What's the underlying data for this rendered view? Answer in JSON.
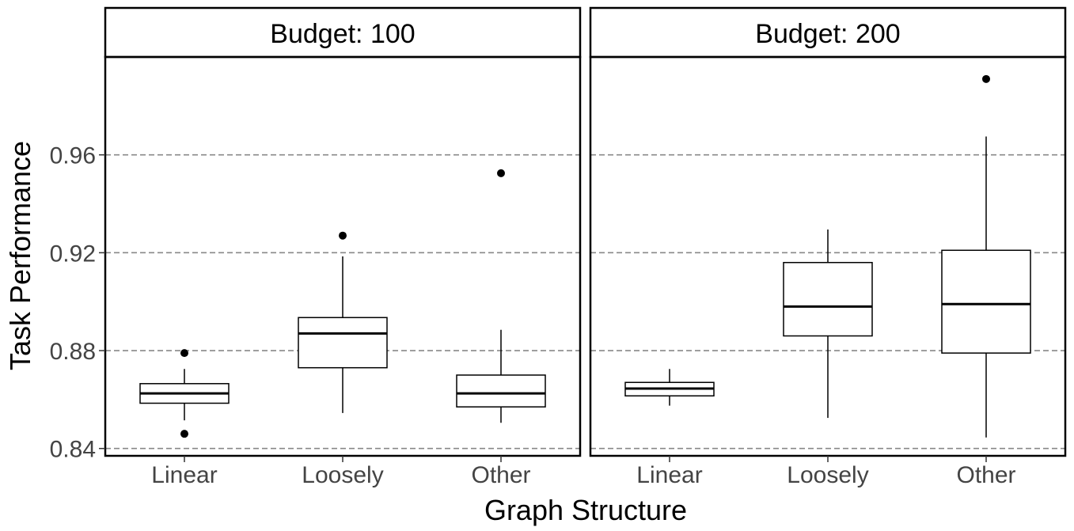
{
  "chart_data": {
    "type": "boxplot",
    "xlabel": "Graph Structure",
    "ylabel": "Task Performance",
    "ylim": [
      0.837,
      1.0
    ],
    "yticks": [
      0.84,
      0.88,
      0.92,
      0.96
    ],
    "ytick_labels": [
      "0.84",
      "0.88",
      "0.92",
      "0.96"
    ],
    "grid": "horizontal dashed at y ticks",
    "categories": [
      "Linear",
      "Loosely",
      "Other"
    ],
    "panels": [
      {
        "title": "Budget: 100",
        "boxes": [
          {
            "category": "Linear",
            "whisker_low": 0.8515,
            "q1": 0.8585,
            "median": 0.8625,
            "q3": 0.8665,
            "whisker_high": 0.8725,
            "outliers": [
              0.879,
              0.846
            ]
          },
          {
            "category": "Loosely",
            "whisker_low": 0.8545,
            "q1": 0.873,
            "median": 0.887,
            "q3": 0.8935,
            "whisker_high": 0.9185,
            "outliers": [
              0.927
            ]
          },
          {
            "category": "Other",
            "whisker_low": 0.8505,
            "q1": 0.857,
            "median": 0.8625,
            "q3": 0.87,
            "whisker_high": 0.8885,
            "outliers": [
              0.9525
            ]
          }
        ]
      },
      {
        "title": "Budget: 200",
        "boxes": [
          {
            "category": "Linear",
            "whisker_low": 0.8575,
            "q1": 0.8615,
            "median": 0.8645,
            "q3": 0.867,
            "whisker_high": 0.8725,
            "outliers": []
          },
          {
            "category": "Loosely",
            "whisker_low": 0.8525,
            "q1": 0.886,
            "median": 0.898,
            "q3": 0.916,
            "whisker_high": 0.9295,
            "outliers": []
          },
          {
            "category": "Other",
            "whisker_low": 0.8445,
            "q1": 0.879,
            "median": 0.899,
            "q3": 0.921,
            "whisker_high": 0.9675,
            "outliers": [
              0.991
            ]
          }
        ]
      }
    ]
  }
}
